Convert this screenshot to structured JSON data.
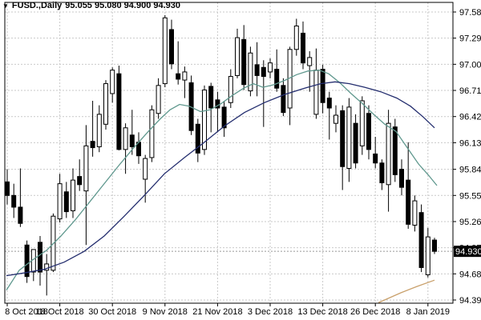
{
  "title": {
    "arrow": "▼",
    "symbol": "FUSD.,Daily",
    "ohlc_text": "95.055 95.080 94.900 94.930"
  },
  "chart_data": {
    "type": "candlestick",
    "title": "FUSD.,Daily",
    "quote": {
      "open": 95.055,
      "high": 95.08,
      "low": 94.9,
      "close": 94.93
    },
    "current_price": 94.93,
    "current_price_label": "94.930",
    "y_axis": {
      "max": 97.585,
      "min": 94.39,
      "labels": [
        97.585,
        97.295,
        97.005,
        96.715,
        96.425,
        96.135,
        95.84,
        95.55,
        95.26,
        94.97,
        94.68,
        94.39
      ]
    },
    "x_axis": {
      "labels": [
        "8 Oct 2018",
        "18 Oct 2018",
        "30 Oct 2018",
        "9 Nov 2018",
        "21 Nov 2018",
        "3 Dec 2018",
        "13 Dec 2018",
        "26 Dec 2018",
        "8 Jan 2019"
      ],
      "tick_indices": [
        0,
        8,
        16,
        24,
        32,
        40,
        48,
        56,
        64
      ]
    },
    "candles_columns": [
      "open",
      "high",
      "low",
      "close"
    ],
    "candles": [
      [
        95.7,
        95.84,
        95.45,
        95.55
      ],
      [
        95.55,
        95.68,
        95.3,
        95.42
      ],
      [
        95.42,
        95.85,
        95.2,
        95.24
      ],
      [
        95.0,
        95.05,
        94.58,
        94.65
      ],
      [
        94.7,
        94.95,
        94.6,
        94.95
      ],
      [
        95.03,
        95.1,
        94.55,
        94.7
      ],
      [
        94.72,
        94.9,
        94.44,
        94.79
      ],
      [
        94.72,
        95.35,
        94.7,
        95.32
      ],
      [
        95.29,
        95.79,
        95.25,
        95.68
      ],
      [
        95.59,
        95.7,
        95.3,
        95.37
      ],
      [
        95.38,
        95.85,
        95.3,
        95.72
      ],
      [
        95.76,
        95.95,
        95.6,
        95.67
      ],
      [
        95.6,
        96.33,
        95.0,
        96.1
      ],
      [
        96.15,
        96.6,
        95.98,
        96.08
      ],
      [
        96.09,
        96.55,
        96.03,
        96.45
      ],
      [
        96.34,
        96.83,
        96.28,
        96.79
      ],
      [
        96.68,
        96.97,
        96.58,
        96.94
      ],
      [
        96.9,
        96.99,
        96.05,
        96.06
      ],
      [
        96.06,
        96.35,
        95.79,
        96.3
      ],
      [
        96.22,
        96.5,
        96.0,
        96.09
      ],
      [
        96.14,
        96.25,
        95.9,
        95.99
      ],
      [
        95.73,
        96.0,
        95.47,
        95.96
      ],
      [
        95.97,
        96.55,
        95.92,
        96.5
      ],
      [
        96.46,
        96.85,
        96.4,
        96.77
      ],
      [
        96.79,
        97.55,
        96.75,
        97.52
      ],
      [
        97.39,
        97.5,
        96.95,
        97.01
      ],
      [
        96.9,
        97.26,
        96.78,
        96.84
      ],
      [
        96.83,
        96.98,
        96.63,
        96.92
      ],
      [
        96.8,
        96.88,
        96.22,
        96.27
      ],
      [
        96.34,
        96.4,
        95.92,
        96.02
      ],
      [
        96.06,
        96.77,
        96.0,
        96.72
      ],
      [
        96.76,
        96.8,
        96.25,
        96.52
      ],
      [
        96.61,
        96.7,
        96.25,
        96.52
      ],
      [
        96.53,
        96.6,
        96.2,
        96.3
      ],
      [
        96.58,
        96.95,
        96.52,
        96.87
      ],
      [
        96.88,
        97.4,
        96.85,
        97.3
      ],
      [
        97.28,
        97.44,
        96.72,
        96.78
      ],
      [
        96.71,
        97.2,
        96.65,
        97.13
      ],
      [
        97.0,
        97.25,
        96.65,
        96.88
      ],
      [
        96.97,
        97.05,
        96.31,
        96.87
      ],
      [
        96.92,
        97.07,
        96.85,
        97.02
      ],
      [
        96.95,
        97.17,
        96.7,
        96.74
      ],
      [
        96.77,
        96.85,
        96.43,
        96.47
      ],
      [
        96.52,
        97.2,
        96.33,
        97.17
      ],
      [
        97.17,
        97.51,
        97.1,
        97.43
      ],
      [
        97.35,
        97.48,
        96.95,
        97.02
      ],
      [
        96.99,
        97.15,
        96.7,
        97.08
      ],
      [
        96.45,
        97.18,
        96.4,
        96.94
      ],
      [
        96.95,
        97.0,
        96.46,
        96.58
      ],
      [
        96.63,
        96.7,
        96.17,
        96.52
      ],
      [
        96.35,
        96.55,
        96.25,
        96.44
      ],
      [
        96.49,
        96.55,
        95.61,
        95.87
      ],
      [
        95.85,
        96.63,
        95.7,
        96.53
      ],
      [
        96.35,
        96.45,
        95.85,
        95.91
      ],
      [
        96.1,
        96.65,
        96.0,
        96.6
      ],
      [
        96.46,
        96.55,
        95.95,
        96.06
      ],
      [
        96.01,
        96.2,
        95.85,
        95.91
      ],
      [
        95.91,
        95.95,
        95.61,
        95.69
      ],
      [
        95.67,
        96.5,
        95.37,
        96.35
      ],
      [
        96.31,
        96.4,
        95.7,
        95.78
      ],
      [
        95.84,
        95.95,
        95.55,
        95.64
      ],
      [
        95.72,
        96.14,
        95.18,
        95.23
      ],
      [
        95.22,
        95.55,
        95.15,
        95.49
      ],
      [
        95.36,
        95.45,
        94.7,
        94.75
      ],
      [
        94.67,
        95.19,
        94.64,
        95.09
      ],
      [
        95.055,
        95.08,
        94.9,
        94.93
      ]
    ],
    "overlays": [
      {
        "name": "ma-fast-teal",
        "color": "#5f988e",
        "points": [
          [
            8,
            94.5
          ],
          [
            24,
            94.72
          ],
          [
            40,
            94.83
          ],
          [
            58,
            94.94
          ],
          [
            76,
            95.1
          ],
          [
            94,
            95.28
          ],
          [
            112,
            95.48
          ],
          [
            130,
            95.68
          ],
          [
            148,
            95.88
          ],
          [
            166,
            96.07
          ],
          [
            184,
            96.25
          ],
          [
            200,
            96.4
          ],
          [
            212,
            96.5
          ],
          [
            224,
            96.56
          ],
          [
            236,
            96.54
          ],
          [
            250,
            96.48
          ],
          [
            262,
            96.5
          ],
          [
            276,
            96.57
          ],
          [
            290,
            96.66
          ],
          [
            304,
            96.74
          ],
          [
            316,
            96.79
          ],
          [
            328,
            96.75
          ],
          [
            342,
            96.78
          ],
          [
            356,
            96.83
          ],
          [
            370,
            96.89
          ],
          [
            384,
            96.93
          ],
          [
            398,
            96.94
          ],
          [
            410,
            96.9
          ],
          [
            424,
            96.8
          ],
          [
            438,
            96.68
          ],
          [
            452,
            96.57
          ],
          [
            466,
            96.45
          ],
          [
            480,
            96.34
          ],
          [
            494,
            96.26
          ],
          [
            508,
            96.08
          ],
          [
            522,
            95.9
          ],
          [
            534,
            95.78
          ],
          [
            545,
            95.66
          ]
        ]
      },
      {
        "name": "ma-slow-navy",
        "color": "#232d6e",
        "points": [
          [
            8,
            94.66
          ],
          [
            30,
            94.69
          ],
          [
            55,
            94.73
          ],
          [
            80,
            94.81
          ],
          [
            105,
            94.93
          ],
          [
            130,
            95.1
          ],
          [
            155,
            95.32
          ],
          [
            180,
            95.55
          ],
          [
            205,
            95.79
          ],
          [
            230,
            95.97
          ],
          [
            255,
            96.14
          ],
          [
            280,
            96.32
          ],
          [
            305,
            96.47
          ],
          [
            330,
            96.58
          ],
          [
            355,
            96.67
          ],
          [
            380,
            96.74
          ],
          [
            400,
            96.79
          ],
          [
            418,
            96.81
          ],
          [
            436,
            96.79
          ],
          [
            455,
            96.75
          ],
          [
            475,
            96.7
          ],
          [
            495,
            96.63
          ],
          [
            512,
            96.54
          ],
          [
            528,
            96.42
          ],
          [
            542,
            96.3
          ]
        ]
      },
      {
        "name": "trendline-orange",
        "color": "#c9a06b",
        "points": [
          [
            472,
            94.36
          ],
          [
            500,
            94.47
          ],
          [
            520,
            94.54
          ],
          [
            542,
            94.61
          ]
        ]
      }
    ],
    "layout_hints": {
      "grid": true,
      "legend": false,
      "price_axis": "right",
      "time_axis": "bottom"
    },
    "colors": {
      "background": "#ffffff",
      "frame": "#000000",
      "grid": "#c9c9c9",
      "bull_fill": "#ffffff",
      "bear_fill": "#000000",
      "candle_outline": "#000000",
      "price_box_bg": "#000000",
      "price_box_text": "#ffffff",
      "axis_text": "#000000"
    }
  }
}
